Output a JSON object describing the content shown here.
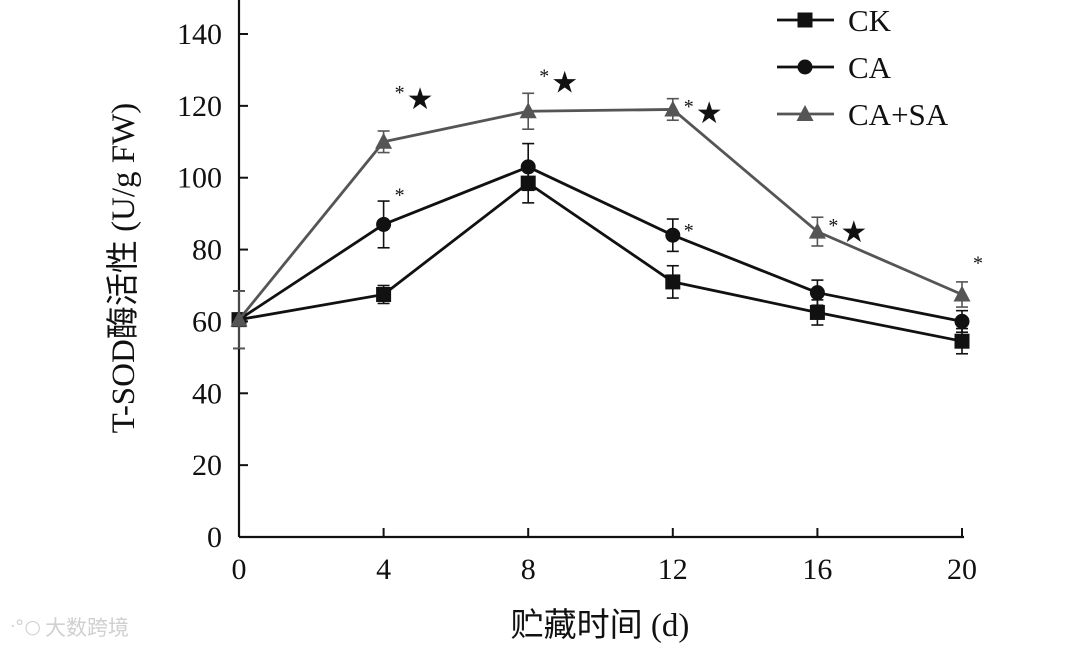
{
  "chart_data": {
    "type": "line",
    "xlabel": "贮藏时间 (d)",
    "ylabel": "T-SOD酶活性 (U/g FW)",
    "x": [
      0,
      4,
      8,
      12,
      16,
      20
    ],
    "xlim": [
      0,
      20
    ],
    "ylim": [
      0,
      140
    ],
    "xticks": [
      0,
      4,
      8,
      12,
      16,
      20
    ],
    "yticks": [
      0,
      20,
      40,
      60,
      80,
      100,
      120,
      140
    ],
    "grid": false,
    "legend_position": "top-right",
    "series": [
      {
        "name": "CK",
        "marker": "square",
        "color": "#111111",
        "values": [
          60.5,
          67.5,
          98.5,
          71.0,
          62.5,
          54.5
        ],
        "errors": [
          8.0,
          2.5,
          5.5,
          4.5,
          3.5,
          3.5
        ]
      },
      {
        "name": "CA",
        "marker": "circle",
        "color": "#111111",
        "values": [
          60.5,
          87.0,
          103.0,
          84.0,
          68.0,
          60.0
        ],
        "errors": [
          8.0,
          6.5,
          6.5,
          4.5,
          3.5,
          3.0
        ]
      },
      {
        "name": "CA+SA",
        "marker": "triangle",
        "color": "#555555",
        "values": [
          60.5,
          110.0,
          118.5,
          119.0,
          85.0,
          67.5
        ],
        "errors": [
          8.0,
          3.0,
          5.0,
          3.0,
          4.0,
          3.5
        ]
      }
    ],
    "annotations": [
      {
        "x": 4,
        "y": 122.5,
        "text": "*★"
      },
      {
        "x": 8,
        "y": 127.0,
        "text": "*★"
      },
      {
        "x": 12,
        "y": 118.5,
        "text": "*★"
      },
      {
        "x": 16,
        "y": 85.5,
        "text": "*★"
      },
      {
        "x": 4,
        "y": 94.0,
        "text": "*"
      },
      {
        "x": 12,
        "y": 84.0,
        "text": "*"
      },
      {
        "x": 20,
        "y": 75.0,
        "text": "*"
      }
    ]
  },
  "watermark": {
    "text": "大数跨境"
  },
  "colors": {
    "axis": "#111111",
    "ck": "#111111",
    "ca": "#111111",
    "ca_sa": "#555555"
  }
}
